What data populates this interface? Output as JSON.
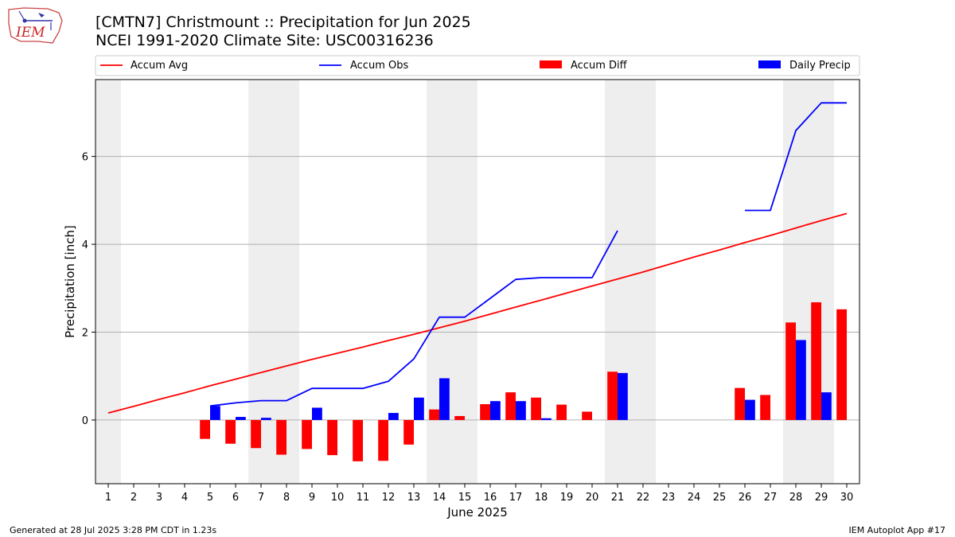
{
  "header": {
    "title_line1": "[CMTN7] Christmount :: Precipitation for Jun 2025",
    "title_line2": "NCEI 1991-2020 Climate Site: USC00316236",
    "logo_text": "IEM"
  },
  "footer": {
    "generated": "Generated at 28 Jul 2025 3:28 PM CDT in 1.23s",
    "app": "IEM Autoplot App #17"
  },
  "colors": {
    "avg": "#ff0000",
    "obs": "#0000ff",
    "diff": "#ff0000",
    "daily": "#0000ff",
    "weekend_shade": "#eeeeee",
    "grid": "#b0b0b0"
  },
  "chart_data": {
    "type": "bar",
    "xlabel": "June 2025",
    "ylabel": "Precipitation [inch]",
    "xlim": [
      0.5,
      30.5
    ],
    "ylim": [
      -1.45,
      7.75
    ],
    "yticks": [
      0,
      2,
      4,
      6
    ],
    "grid": "horizontal",
    "legend_position": "top",
    "legend": [
      "Accum Avg",
      "Accum Obs",
      "Accum Diff",
      "Daily Precip"
    ],
    "x": [
      1,
      2,
      3,
      4,
      5,
      6,
      7,
      8,
      9,
      10,
      11,
      12,
      13,
      14,
      15,
      16,
      17,
      18,
      19,
      20,
      21,
      22,
      23,
      24,
      25,
      26,
      27,
      28,
      29,
      30
    ],
    "shaded_days": [
      1,
      7,
      8,
      14,
      15,
      21,
      22,
      28,
      29
    ],
    "series": [
      {
        "name": "Accum Avg",
        "type": "line",
        "values": [
          0.16,
          0.31,
          0.47,
          0.62,
          0.78,
          0.93,
          1.08,
          1.23,
          1.38,
          1.52,
          1.66,
          1.81,
          1.95,
          2.1,
          2.25,
          2.41,
          2.57,
          2.73,
          2.89,
          3.05,
          3.21,
          3.37,
          3.54,
          3.71,
          3.87,
          4.04,
          4.2,
          4.37,
          4.54,
          4.7
        ]
      },
      {
        "name": "Accum Obs",
        "type": "line",
        "values": [
          null,
          null,
          null,
          null,
          0.32,
          0.39,
          0.44,
          0.44,
          0.72,
          0.72,
          0.72,
          0.88,
          1.39,
          2.34,
          2.34,
          2.77,
          3.2,
          3.24,
          3.24,
          3.24,
          4.31,
          null,
          null,
          null,
          null,
          4.77,
          4.77,
          6.59,
          7.22,
          7.22
        ]
      },
      {
        "name": "Accum Diff",
        "type": "bar",
        "values": [
          null,
          null,
          null,
          null,
          -0.43,
          -0.54,
          -0.64,
          -0.79,
          -0.66,
          -0.8,
          -0.94,
          -0.93,
          -0.56,
          0.24,
          0.09,
          0.36,
          0.63,
          0.51,
          0.35,
          0.19,
          1.1,
          null,
          null,
          null,
          null,
          0.73,
          0.57,
          2.22,
          2.68,
          2.52
        ]
      },
      {
        "name": "Daily Precip",
        "type": "bar",
        "values": [
          0,
          0,
          0,
          0,
          0.32,
          0.07,
          0.05,
          0,
          0.28,
          0,
          0,
          0.16,
          0.51,
          0.95,
          0,
          0.43,
          0.43,
          0.04,
          0,
          0,
          1.07,
          0,
          0,
          0,
          0,
          0.46,
          0,
          1.82,
          0.63,
          0
        ]
      }
    ]
  }
}
